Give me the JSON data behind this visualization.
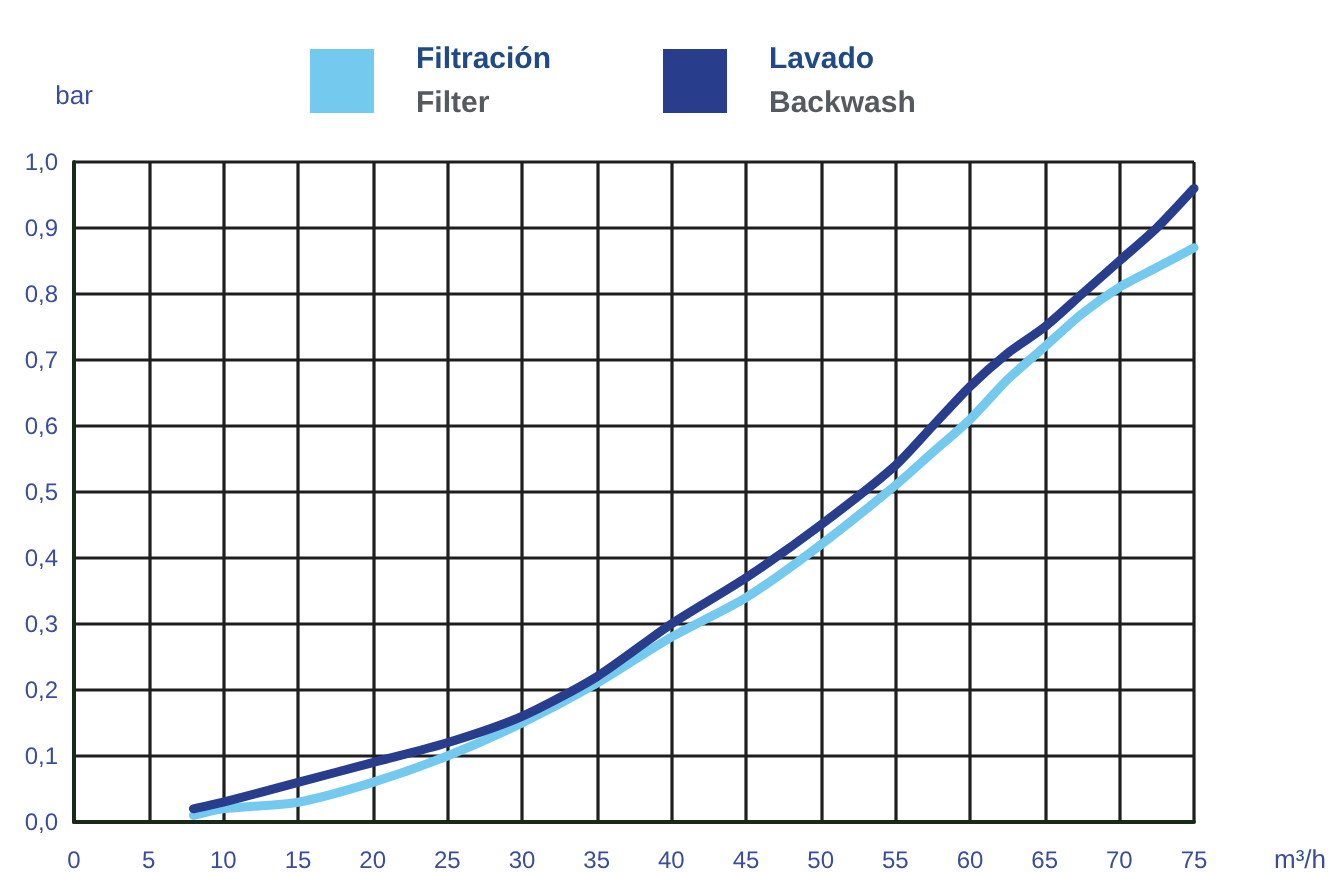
{
  "chart_data": {
    "type": "line",
    "xlabel": "m³/h",
    "ylabel": "bar",
    "x": [
      8,
      10,
      15,
      20,
      25,
      30,
      35,
      40,
      45,
      50,
      55,
      57.5,
      60,
      62.5,
      65,
      67.5,
      70,
      72.5,
      75
    ],
    "series": [
      {
        "name": "Filtración\nFilter",
        "color": "#74c9ee",
        "values": [
          0.01,
          0.02,
          0.03,
          0.06,
          0.1,
          0.15,
          0.21,
          0.28,
          0.34,
          0.42,
          0.51,
          0.56,
          0.61,
          0.67,
          0.72,
          0.77,
          0.81,
          0.84,
          0.87
        ]
      },
      {
        "name": "Lavado\nBackwash",
        "color": "#283d8c",
        "values": [
          0.02,
          0.03,
          0.06,
          0.09,
          0.12,
          0.16,
          0.22,
          0.3,
          0.37,
          0.45,
          0.54,
          0.6,
          0.66,
          0.71,
          0.75,
          0.8,
          0.85,
          0.9,
          0.96
        ]
      }
    ],
    "xlim": [
      0,
      75
    ],
    "xticks": [
      0,
      5,
      10,
      15,
      20,
      25,
      30,
      35,
      40,
      45,
      50,
      55,
      60,
      65,
      70,
      75
    ],
    "ylim": [
      0,
      1
    ],
    "yticks": [
      {
        "value": 0,
        "label": "0,0"
      },
      {
        "value": 0.1,
        "label": "0,1"
      },
      {
        "value": 0.2,
        "label": "0,2"
      },
      {
        "value": 0.3,
        "label": "0,3"
      },
      {
        "value": 0.4,
        "label": "0,4"
      },
      {
        "value": 0.5,
        "label": "0,5"
      },
      {
        "value": 0.6,
        "label": "0,6"
      },
      {
        "value": 0.7,
        "label": "0,7"
      },
      {
        "value": 0.8,
        "label": "0,8"
      },
      {
        "value": 0.9,
        "label": "0,9"
      },
      {
        "value": 1,
        "label": "1,0"
      }
    ],
    "grid": true,
    "legend": "top",
    "marker": "none",
    "line_style": "solid"
  }
}
